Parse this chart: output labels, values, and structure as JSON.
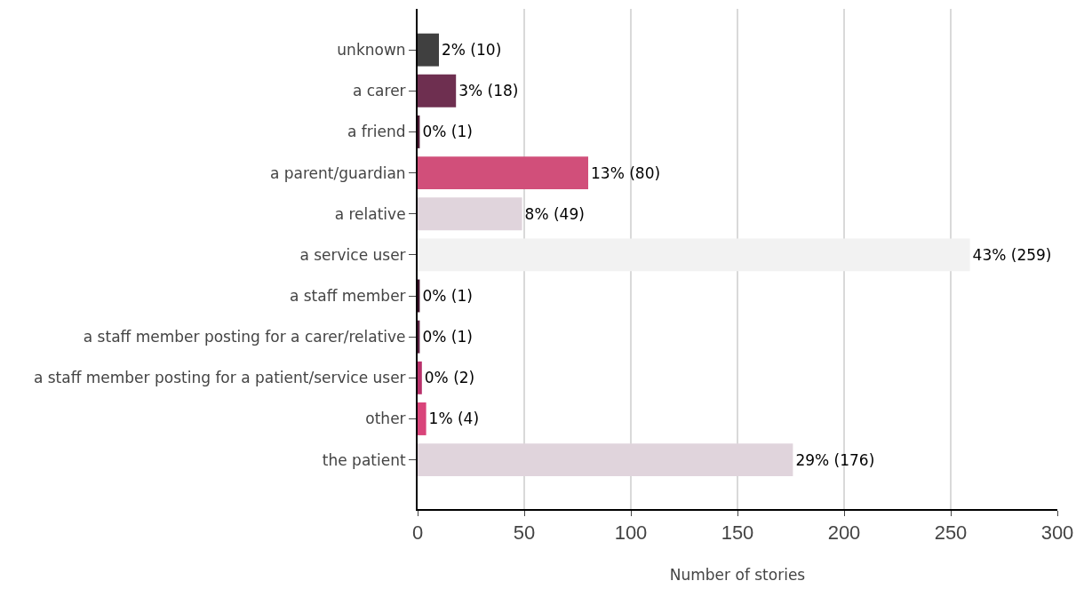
{
  "chart_data": {
    "type": "bar",
    "orientation": "horizontal",
    "xlabel": "Number of stories",
    "categories": [
      "unknown",
      "a carer",
      "a friend",
      "a parent/guardian",
      "a relative",
      "a service user",
      "a staff member",
      "a staff member posting for a carer/relative",
      "a staff member posting for a patient/service user",
      "other",
      "the patient"
    ],
    "values": [
      10,
      18,
      1,
      80,
      49,
      259,
      1,
      1,
      2,
      4,
      176
    ],
    "colors": [
      "#404040",
      "#6e2f50",
      "#4a1832",
      "#d14f7a",
      "#e0d4dc",
      "#f2f2f2",
      "#3a1028",
      "#5a1f40",
      "#b8306a",
      "#d9447a",
      "#e0d4dc"
    ],
    "value_labels": [
      "2% (10)",
      "3% (18)",
      "0% (1)",
      "13% (80)",
      "8% (49)",
      "43% (259)",
      "0% (1)",
      "0% (1)",
      "0% (2)",
      "1% (4)",
      "29% (176)"
    ],
    "xlim": [
      0,
      300
    ],
    "xticks": [
      0,
      50,
      100,
      150,
      200,
      250,
      300
    ],
    "grid": "x",
    "legend": false
  }
}
